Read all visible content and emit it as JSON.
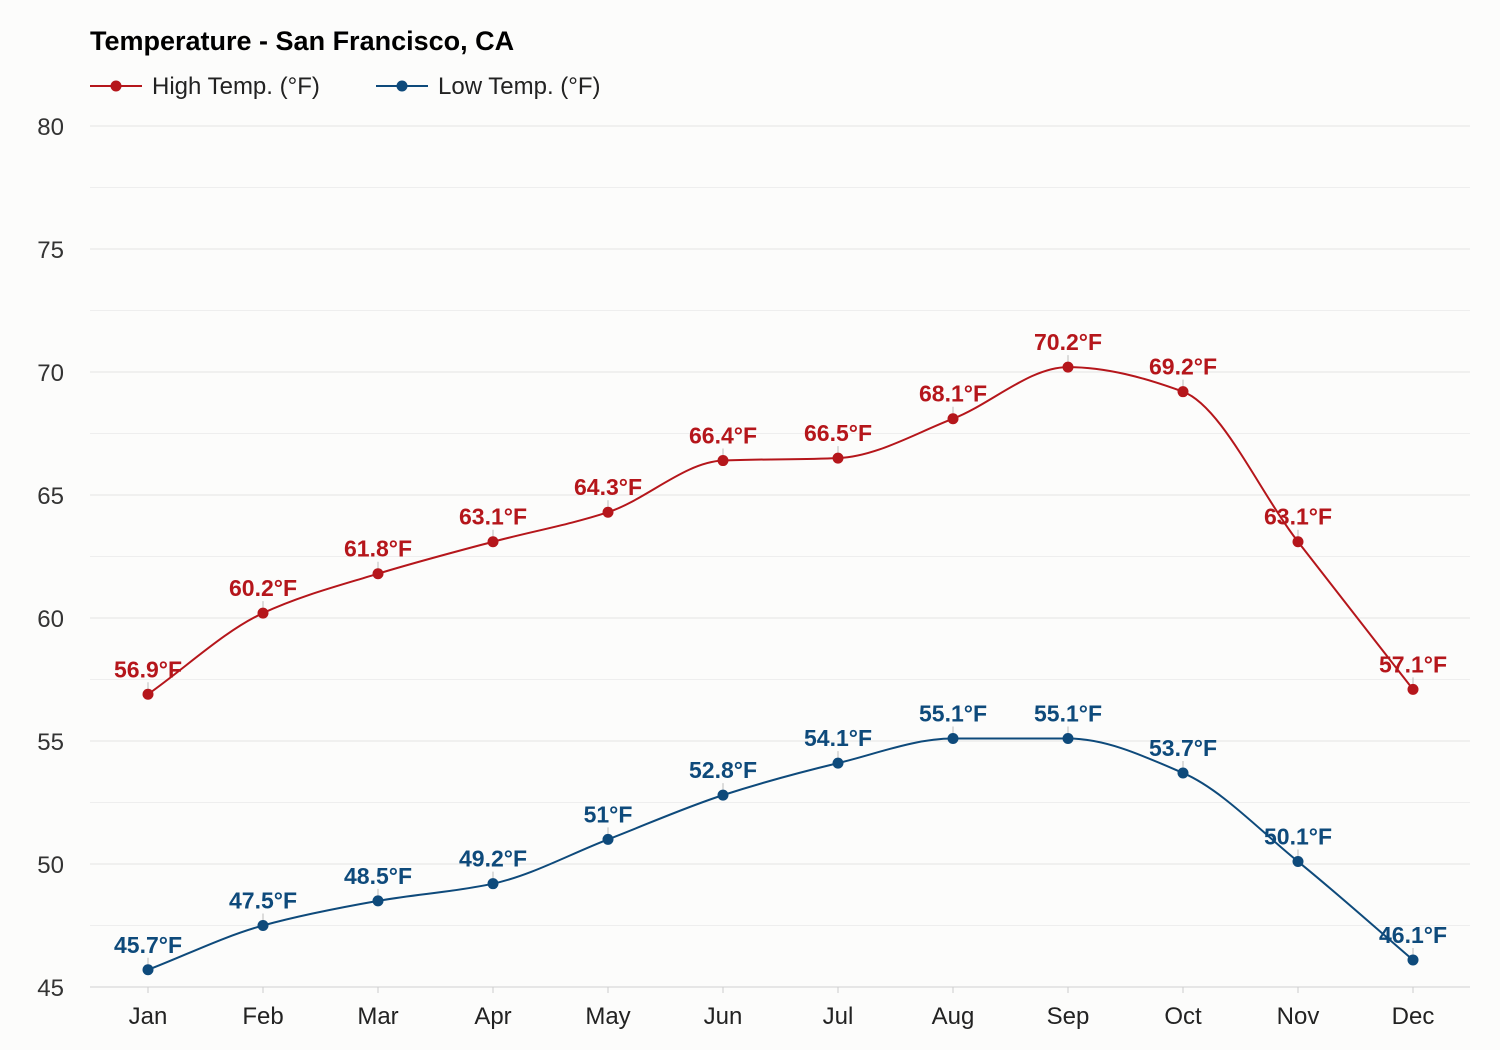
{
  "chart_data": {
    "type": "line",
    "title": "Temperature - San Francisco, CA",
    "xlabel": "",
    "ylabel": "",
    "categories": [
      "Jan",
      "Feb",
      "Mar",
      "Apr",
      "May",
      "Jun",
      "Jul",
      "Aug",
      "Sep",
      "Oct",
      "Nov",
      "Dec"
    ],
    "ylim": [
      45,
      80
    ],
    "yticks": [
      45,
      50,
      55,
      60,
      65,
      70,
      75,
      80
    ],
    "minor_gridlines_every": 2.5,
    "grid": true,
    "legend_position": "top-left",
    "unit_suffix": "°F",
    "series": [
      {
        "key": "high",
        "name": "High Temp. (°F)",
        "color": "#b5161b",
        "values": [
          56.9,
          60.2,
          61.8,
          63.1,
          64.3,
          66.4,
          66.5,
          68.1,
          70.2,
          69.2,
          63.1,
          57.1
        ],
        "labels": [
          "56.9°F",
          "60.2°F",
          "61.8°F",
          "63.1°F",
          "64.3°F",
          "66.4°F",
          "66.5°F",
          "68.1°F",
          "70.2°F",
          "69.2°F",
          "63.1°F",
          "57.1°F"
        ]
      },
      {
        "key": "low",
        "name": "Low Temp. (°F)",
        "color": "#0e4a7b",
        "values": [
          45.7,
          47.5,
          48.5,
          49.2,
          51,
          52.8,
          54.1,
          55.1,
          55.1,
          53.7,
          50.1,
          46.1
        ],
        "labels": [
          "45.7°F",
          "47.5°F",
          "48.5°F",
          "49.2°F",
          "51°F",
          "52.8°F",
          "54.1°F",
          "55.1°F",
          "55.1°F",
          "53.7°F",
          "50.1°F",
          "46.1°F"
        ]
      }
    ]
  }
}
